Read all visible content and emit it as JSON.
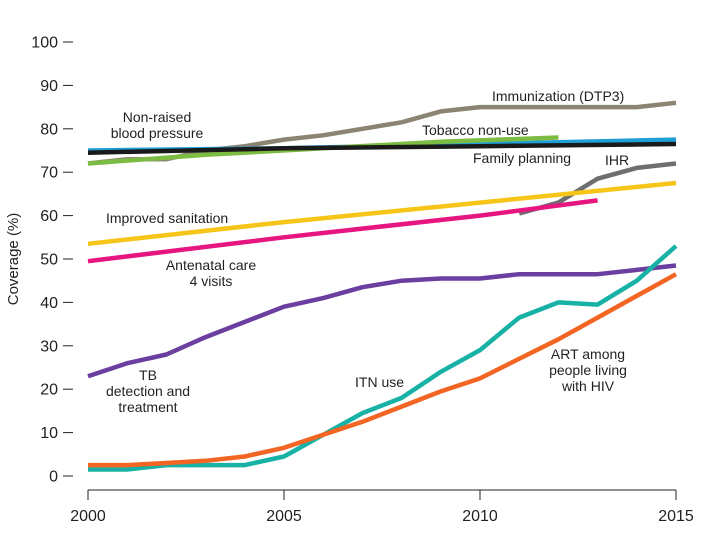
{
  "chart_data": {
    "type": "line",
    "title": "",
    "ylabel": "Coverage (%)",
    "xlabel": "",
    "xlim": [
      2000,
      2015
    ],
    "ylim": [
      0,
      100
    ],
    "x_ticks": [
      "2000",
      "2005",
      "2010",
      "2015"
    ],
    "y_ticks": [
      "0",
      "10",
      "20",
      "30",
      "40",
      "50",
      "60",
      "70",
      "80",
      "90",
      "100"
    ],
    "grid": false,
    "series": [
      {
        "name": "Immunization (DTP3)",
        "label_lines": [
          "Immunization (DTP3)"
        ],
        "color": "#8c8472",
        "points": [
          [
            2000,
            72
          ],
          [
            2001,
            73
          ],
          [
            2002,
            73
          ],
          [
            2003,
            75
          ],
          [
            2004,
            76
          ],
          [
            2005,
            77.5
          ],
          [
            2006,
            78.5
          ],
          [
            2007,
            80
          ],
          [
            2008,
            81.5
          ],
          [
            2009,
            84
          ],
          [
            2010,
            85
          ],
          [
            2011,
            85
          ],
          [
            2012,
            85
          ],
          [
            2013,
            85
          ],
          [
            2014,
            85
          ],
          [
            2015,
            86
          ]
        ]
      },
      {
        "name": "Non-raised blood pressure",
        "label_lines": [
          "Non-raised",
          "blood pressure"
        ],
        "color": "#1e9fd6",
        "points": [
          [
            2000,
            75
          ],
          [
            2005,
            75.5
          ],
          [
            2010,
            76.5
          ],
          [
            2015,
            77.5
          ]
        ]
      },
      {
        "name": "Tobacco non-use",
        "label_lines": [
          "Tobacco non-use"
        ],
        "color": "#7dbc42",
        "points": [
          [
            2000,
            72
          ],
          [
            2003,
            74
          ],
          [
            2006,
            75.5
          ],
          [
            2009,
            77
          ],
          [
            2012,
            78
          ]
        ]
      },
      {
        "name": "Family planning",
        "label_lines": [
          "Family planning"
        ],
        "color": "#1a1a1a",
        "points": [
          [
            2000,
            74.5
          ],
          [
            2005,
            75.5
          ],
          [
            2010,
            76
          ],
          [
            2015,
            76.5
          ]
        ]
      },
      {
        "name": "IHR",
        "label_lines": [
          "IHR"
        ],
        "color": "#6d6e70",
        "points": [
          [
            2011,
            60.5
          ],
          [
            2012,
            63
          ],
          [
            2013,
            68.5
          ],
          [
            2014,
            71
          ],
          [
            2015,
            72
          ]
        ]
      },
      {
        "name": "Improved sanitation",
        "label_lines": [
          "Improved sanitation"
        ],
        "color": "#f5c518",
        "points": [
          [
            2000,
            53.5
          ],
          [
            2005,
            58.5
          ],
          [
            2010,
            63
          ],
          [
            2015,
            67.5
          ]
        ]
      },
      {
        "name": "Antenatal care 4 visits",
        "label_lines": [
          "Antenatal care",
          "4 visits"
        ],
        "color": "#e6157f",
        "points": [
          [
            2000,
            49.5
          ],
          [
            2005,
            55
          ],
          [
            2010,
            60
          ],
          [
            2013,
            63.5
          ]
        ]
      },
      {
        "name": "TB detection and treatment",
        "label_lines": [
          "TB",
          "detection and",
          "treatment"
        ],
        "color": "#6b3fa0",
        "points": [
          [
            2000,
            23
          ],
          [
            2001,
            26
          ],
          [
            2002,
            28
          ],
          [
            2003,
            32
          ],
          [
            2004,
            35.5
          ],
          [
            2005,
            39
          ],
          [
            2006,
            41
          ],
          [
            2007,
            43.5
          ],
          [
            2008,
            45
          ],
          [
            2009,
            45.5
          ],
          [
            2010,
            45.5
          ],
          [
            2011,
            46.5
          ],
          [
            2012,
            46.5
          ],
          [
            2013,
            46.5
          ],
          [
            2014,
            47.5
          ],
          [
            2015,
            48.5
          ]
        ]
      },
      {
        "name": "ITN use",
        "label_lines": [
          "ITN use"
        ],
        "color": "#17b1a6",
        "points": [
          [
            2000,
            1.5
          ],
          [
            2001,
            1.5
          ],
          [
            2002,
            2.5
          ],
          [
            2003,
            2.5
          ],
          [
            2004,
            2.5
          ],
          [
            2005,
            4.5
          ],
          [
            2006,
            9.5
          ],
          [
            2007,
            14.5
          ],
          [
            2008,
            18
          ],
          [
            2009,
            24
          ],
          [
            2010,
            29
          ],
          [
            2011,
            36.5
          ],
          [
            2012,
            40
          ],
          [
            2013,
            39.5
          ],
          [
            2014,
            45
          ],
          [
            2015,
            53
          ]
        ]
      },
      {
        "name": "ART among people living with HIV",
        "label_lines": [
          "ART among",
          "people living",
          "with HIV"
        ],
        "color": "#f26522",
        "points": [
          [
            2000,
            2.5
          ],
          [
            2001,
            2.5
          ],
          [
            2002,
            3
          ],
          [
            2003,
            3.5
          ],
          [
            2004,
            4.5
          ],
          [
            2005,
            6.5
          ],
          [
            2006,
            9.5
          ],
          [
            2007,
            12.5
          ],
          [
            2008,
            16
          ],
          [
            2009,
            19.5
          ],
          [
            2010,
            22.5
          ],
          [
            2011,
            27
          ],
          [
            2012,
            31.5
          ],
          [
            2013,
            36.5
          ],
          [
            2014,
            41.5
          ],
          [
            2015,
            46.5
          ]
        ]
      }
    ]
  }
}
